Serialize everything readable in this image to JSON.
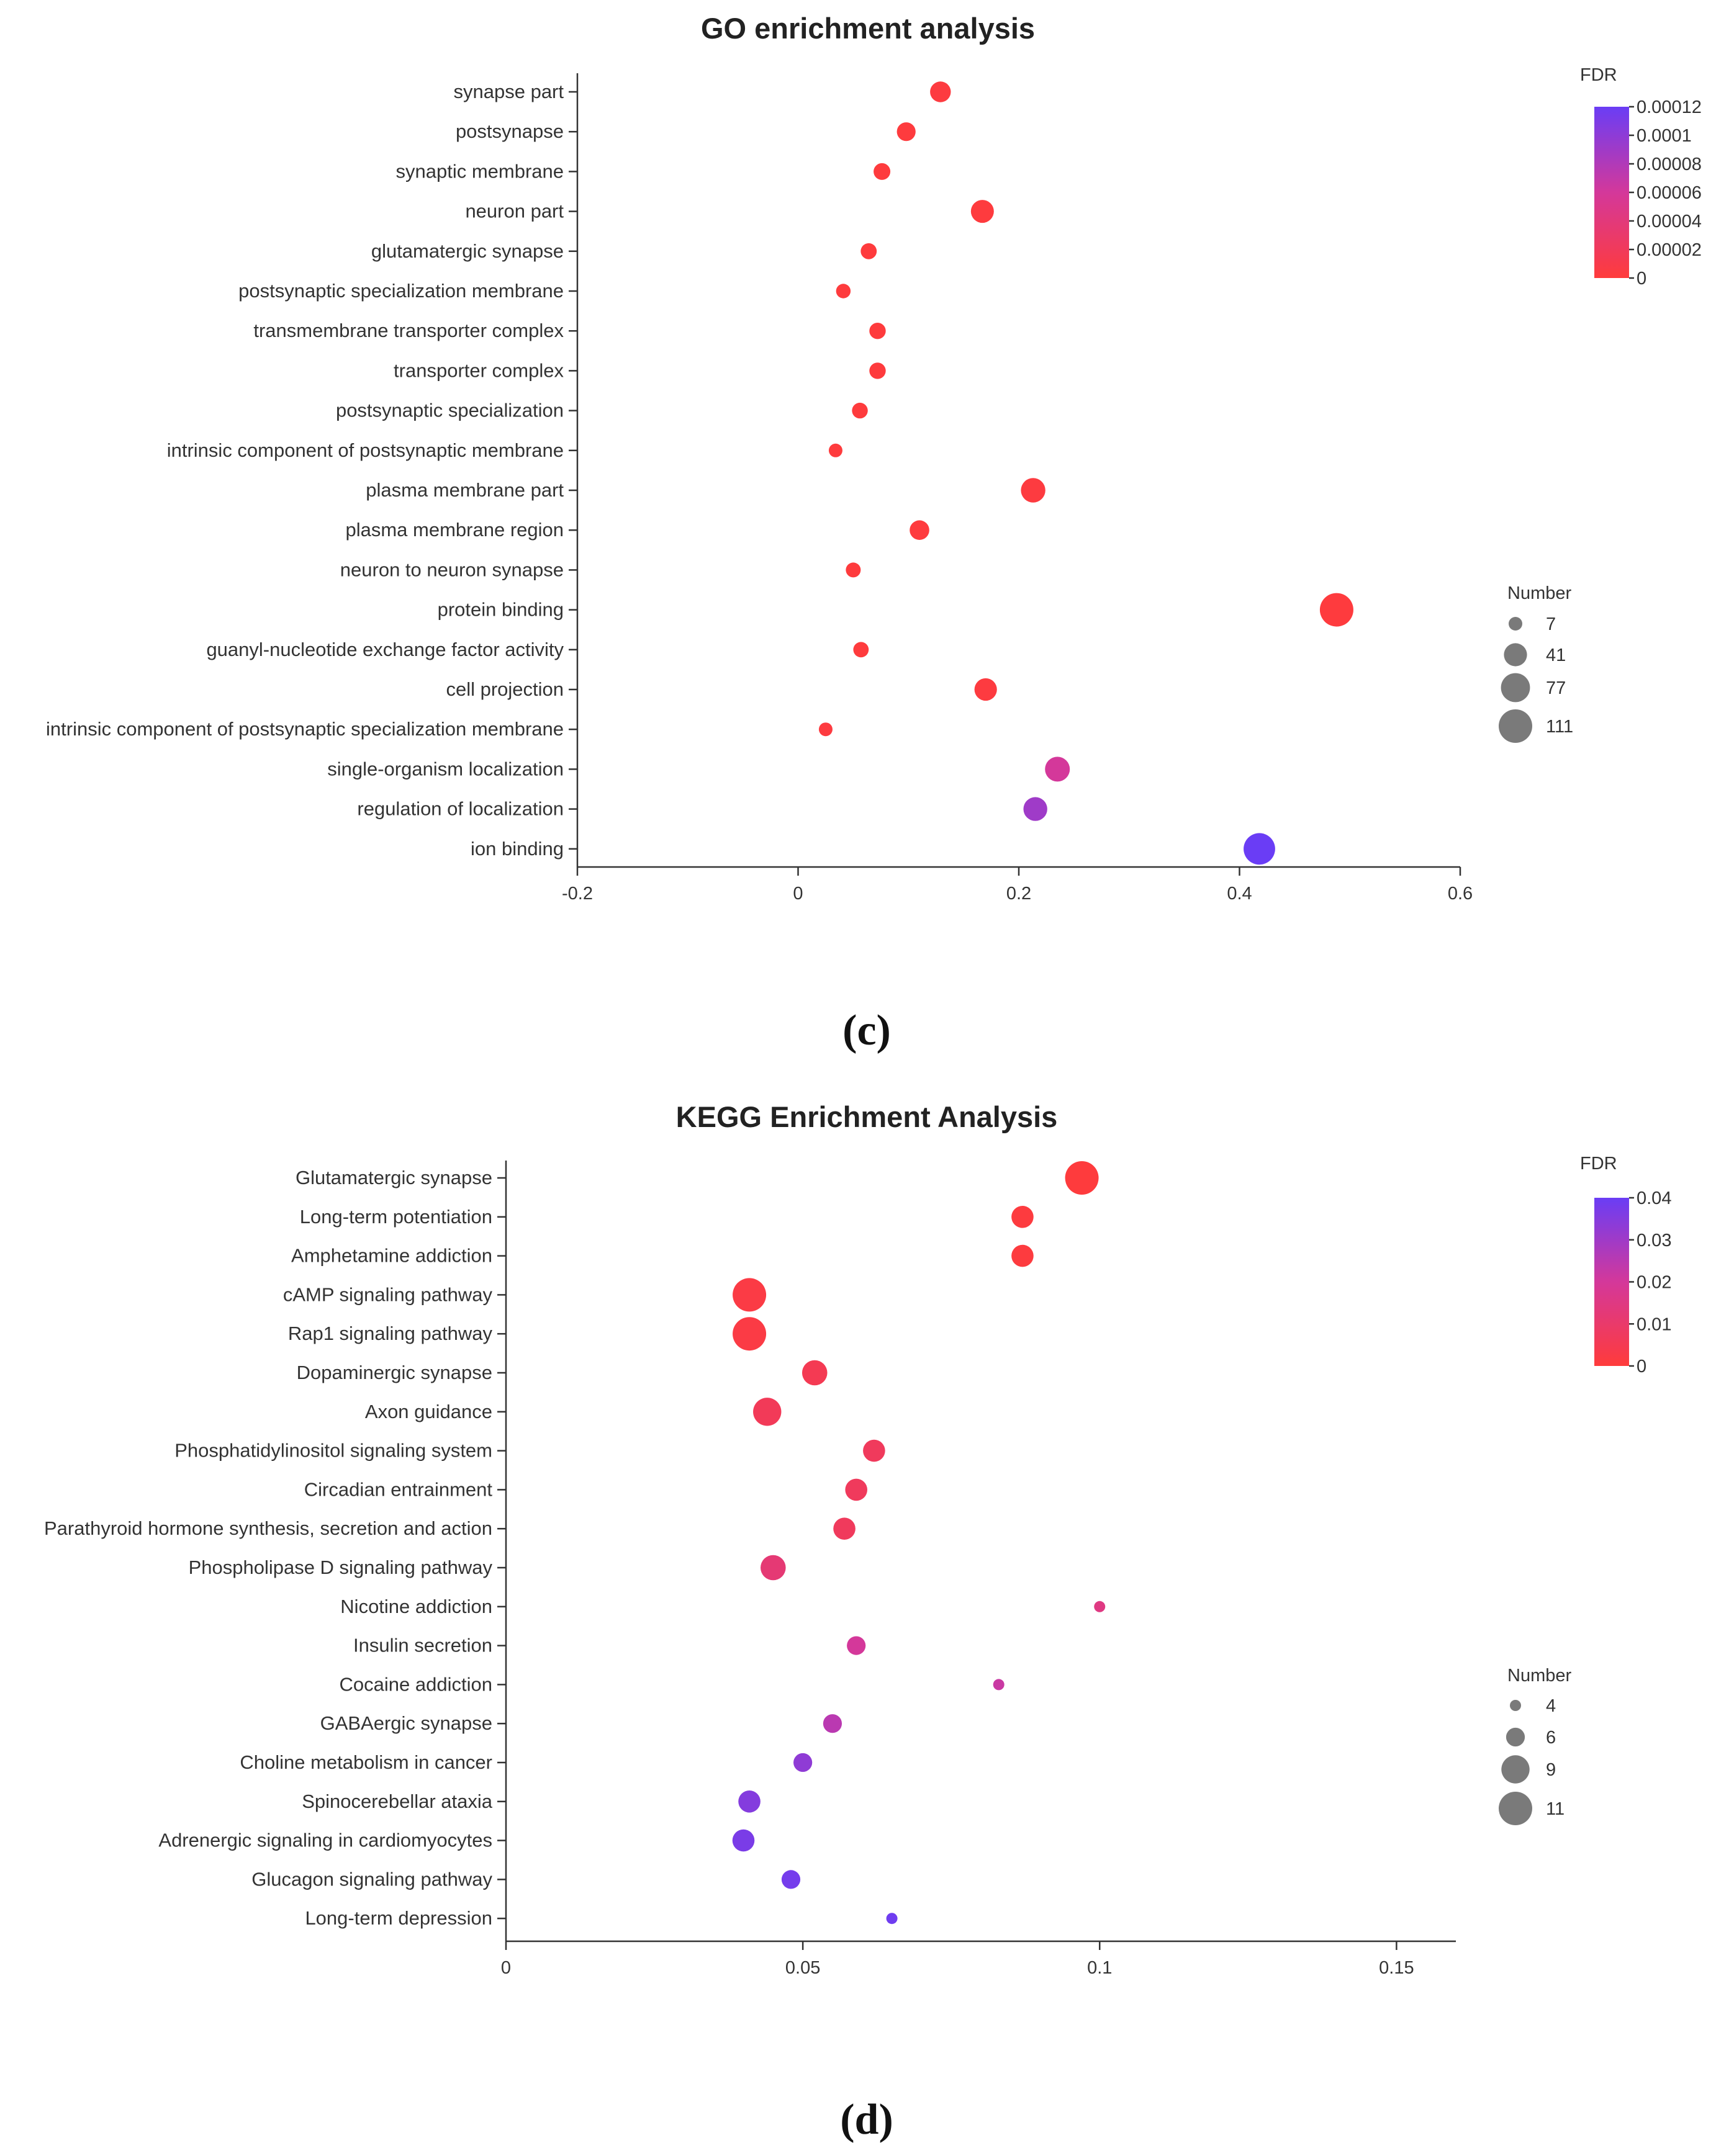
{
  "chart_data": [
    {
      "type": "scatter",
      "title": "GO enrichment analysis",
      "panel_label": "(c)",
      "xlabel": "",
      "ylabel": "",
      "xlim": [
        -0.2,
        0.6
      ],
      "x_ticks": [
        -0.2,
        0,
        0.2,
        0.4,
        0.6
      ],
      "x_tick_labels": [
        "-0.2",
        "0",
        "0.2",
        "0.4",
        "0.6"
      ],
      "categories": [
        "synapse part",
        "postsynapse",
        "synaptic membrane",
        "neuron part",
        "glutamatergic synapse",
        "postsynaptic specialization membrane",
        "transmembrane transporter complex",
        "transporter complex",
        "postsynaptic specialization",
        "intrinsic component of postsynaptic membrane",
        "plasma membrane part",
        "plasma membrane region",
        "neuron to neuron synapse",
        "protein binding",
        "guanyl-nucleotide exchange factor activity",
        "cell projection",
        "intrinsic component of postsynaptic specialization membrane",
        "single-organism localization",
        "regulation of localization",
        "ion binding"
      ],
      "x": [
        0.129,
        0.098,
        0.076,
        0.167,
        0.064,
        0.041,
        0.072,
        0.072,
        0.056,
        0.034,
        0.213,
        0.11,
        0.05,
        0.488,
        0.057,
        0.17,
        0.025,
        0.235,
        0.215,
        0.418
      ],
      "number": [
        30,
        22,
        15,
        40,
        13,
        9,
        14,
        14,
        12,
        7,
        48,
        25,
        10,
        111,
        11,
        38,
        7,
        50,
        45,
        95
      ],
      "fdr": [
        3e-06,
        2e-06,
        1e-06,
        2e-06,
        1e-06,
        1e-06,
        1e-06,
        1e-06,
        1e-06,
        1e-06,
        3e-06,
        2e-06,
        1e-06,
        2e-06,
        1e-06,
        3e-06,
        3e-06,
        6e-05,
        9e-05,
        0.00012
      ],
      "fdr_legend": {
        "title": "FDR",
        "range": [
          0,
          0.00012
        ],
        "ticks": [
          0.00012,
          0.0001,
          8e-05,
          6e-05,
          4e-05,
          2e-05,
          0
        ],
        "tick_labels": [
          "0.00012",
          "0.0001",
          "0.00008",
          "0.00006",
          "0.00004",
          "0.00002",
          "0"
        ],
        "color_low": "#ff3b3b",
        "color_mid": "#d4389a",
        "color_high": "#6a3df5"
      },
      "size_legend": {
        "title": "Number",
        "values": [
          7,
          41,
          77,
          111
        ],
        "labels": [
          "7",
          "41",
          "77",
          "111"
        ],
        "max_value": 111
      }
    },
    {
      "type": "scatter",
      "title": "KEGG Enrichment Analysis",
      "panel_label": "(d)",
      "xlabel": "",
      "ylabel": "",
      "xlim": [
        0,
        0.16
      ],
      "x_ticks": [
        0,
        0.05,
        0.1,
        0.15
      ],
      "x_tick_labels": [
        "0",
        "0.05",
        "0.1",
        "0.15"
      ],
      "categories": [
        "Glutamatergic synapse",
        "Long-term potentiation",
        "Amphetamine addiction",
        "cAMP signaling pathway",
        "Rap1 signaling pathway",
        "Dopaminergic synapse",
        "Axon guidance",
        "Phosphatidylinositol signaling system",
        "Circadian entrainment",
        "Parathyroid hormone synthesis, secretion and action",
        "Phospholipase D signaling pathway",
        "Nicotine addiction",
        "Insulin secretion",
        "Cocaine addiction",
        "GABAergic synapse",
        "Choline metabolism in cancer",
        "Spinocerebellar ataxia",
        "Adrenergic signaling in cardiomyocytes",
        "Glucagon signaling pathway",
        "Long-term depression"
      ],
      "x": [
        0.097,
        0.087,
        0.087,
        0.041,
        0.041,
        0.052,
        0.044,
        0.062,
        0.059,
        0.057,
        0.045,
        0.1,
        0.059,
        0.083,
        0.055,
        0.05,
        0.041,
        0.04,
        0.048,
        0.065
      ],
      "number": [
        11,
        7,
        7,
        11,
        11,
        8,
        9,
        7,
        7,
        7,
        8,
        4,
        6,
        4,
        6,
        6,
        7,
        7,
        6,
        4
      ],
      "fdr": [
        0.0005,
        0.0008,
        0.0008,
        0.002,
        0.002,
        0.005,
        0.006,
        0.007,
        0.007,
        0.007,
        0.012,
        0.015,
        0.02,
        0.022,
        0.025,
        0.033,
        0.035,
        0.037,
        0.038,
        0.039
      ],
      "fdr_legend": {
        "title": "FDR",
        "range": [
          0,
          0.04
        ],
        "ticks": [
          0.04,
          0.03,
          0.02,
          0.01,
          0
        ],
        "tick_labels": [
          "0.04",
          "0.03",
          "0.02",
          "0.01",
          "0"
        ],
        "color_low": "#ff3b3b",
        "color_mid": "#d4389a",
        "color_high": "#6a3df5"
      },
      "size_legend": {
        "title": "Number",
        "values": [
          4,
          6,
          9,
          11
        ],
        "labels": [
          "4",
          "6",
          "9",
          "11"
        ],
        "max_value": 11
      }
    }
  ]
}
